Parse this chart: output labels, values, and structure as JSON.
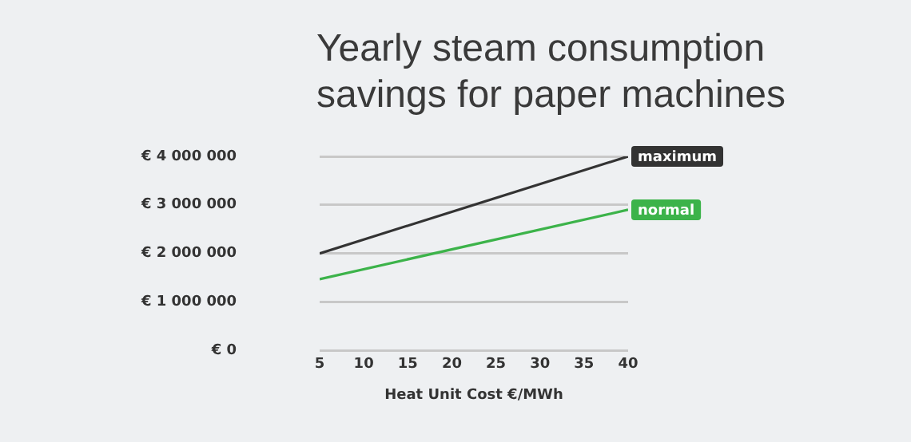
{
  "chart_data": {
    "type": "line",
    "title": "Yearly steam consumption savings for paper machines",
    "xlabel": "Heat Unit Cost €/MWh",
    "x": [
      5,
      40
    ],
    "series": [
      {
        "name": "maximum",
        "color": "#333333",
        "values": [
          2000000,
          4000000
        ]
      },
      {
        "name": "normal",
        "color": "#3cb34a",
        "values": [
          1470000,
          2900000
        ]
      }
    ],
    "xlim": [
      5,
      40
    ],
    "xticks": [
      5,
      10,
      15,
      20,
      25,
      30,
      35,
      40
    ],
    "ylim": [
      0,
      4000000
    ],
    "yticks": [
      {
        "value": 0,
        "label": "€ 0"
      },
      {
        "value": 1000000,
        "label": "€ 1 000 000"
      },
      {
        "value": 2000000,
        "label": "€ 2 000 000"
      },
      {
        "value": 3000000,
        "label": "€ 3 000 000"
      },
      {
        "value": 4000000,
        "label": "€ 4 000 000"
      }
    ],
    "grid": "y",
    "legend": false,
    "marker": "none",
    "line_style": "solid"
  }
}
